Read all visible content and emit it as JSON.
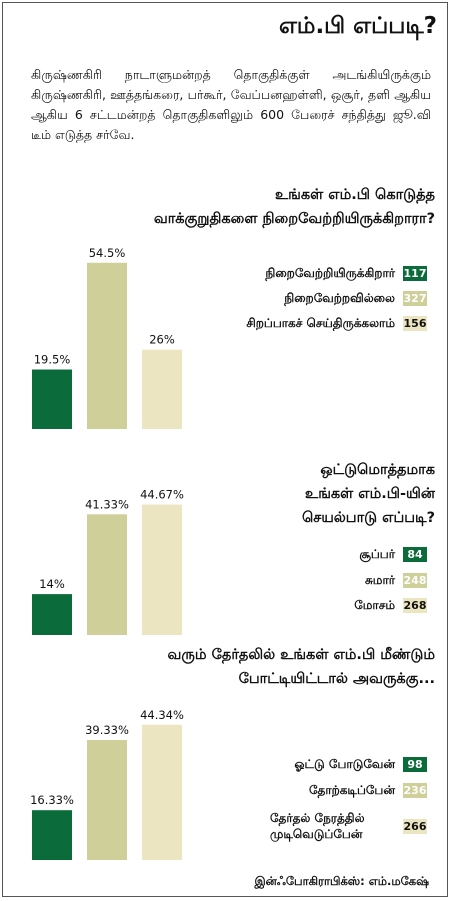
{
  "title": "எம்.பி எப்படி?",
  "intro": "கிருஷ்ணகிரி நாடாளுமன்றத் தொகுதிக்குள் அடங்கியிருக்கும் கிருஷ்ணகிரி, ஊத்தங்கரை, பர்கூர், வேப்பனஹள்ளி, ஒசூர், தளி ஆகிய ஆகிய 6 சட்டமன்றத் தொகுதிகளிலும் 600 பேரைச் சந்தித்து ஜூ.வி டீம் எடுத்த சர்வே.",
  "credit": "இன்ஃபோகிராபிக்ஸ்: எம்.மகேஷ்",
  "colors": {
    "green": "#0b6b3a",
    "olive": "#cfcf9a",
    "cream": "#ece5c2"
  },
  "chart_data": [
    {
      "type": "bar",
      "question": [
        "உங்கள் எம்.பி கொடுத்த",
        "வாக்குறுதிகளை நிறைவேற்றியிருக்கிறாரா?"
      ],
      "series": [
        {
          "name": "நிறைவேற்றியிருக்கிறார்",
          "value": 19.5,
          "label": "19.5%",
          "count": "117"
        },
        {
          "name": "நிறைவேற்றவில்லை",
          "value": 54.5,
          "label": "54.5%",
          "count": "327"
        },
        {
          "name": "சிறப்பாகச் செய்திருக்கலாம்",
          "value": 26,
          "label": "26%",
          "count": "156"
        }
      ]
    },
    {
      "type": "bar",
      "question": [
        "ஒட்டுமொத்தமாக",
        "உங்கள் எம்.பி-யின்",
        "செயல்பாடு எப்படி?"
      ],
      "series": [
        {
          "name": "சூப்பர்",
          "value": 14,
          "label": "14%",
          "count": "84"
        },
        {
          "name": "சுமார்",
          "value": 41.33,
          "label": "41.33%",
          "count": "248"
        },
        {
          "name": "மோசம்",
          "value": 44.67,
          "label": "44.67%",
          "count": "268"
        }
      ]
    },
    {
      "type": "bar",
      "question": [
        "வரும் தேர்தலில் உங்கள் எம்.பி மீண்டும்",
        "போட்டியிட்டால் அவருக்கு..."
      ],
      "series": [
        {
          "name": "ஓட்டு போடுவேன்",
          "value": 16.33,
          "label": "16.33%",
          "count": "98"
        },
        {
          "name": "தோற்கடிப்பேன்",
          "value": 39.33,
          "label": "39.33%",
          "count": "236"
        },
        {
          "name": "தேர்தல் நேரத்தில் முடிவெடுப்பேன்",
          "value": 44.34,
          "label": "44.34%",
          "count": "266"
        }
      ]
    }
  ]
}
